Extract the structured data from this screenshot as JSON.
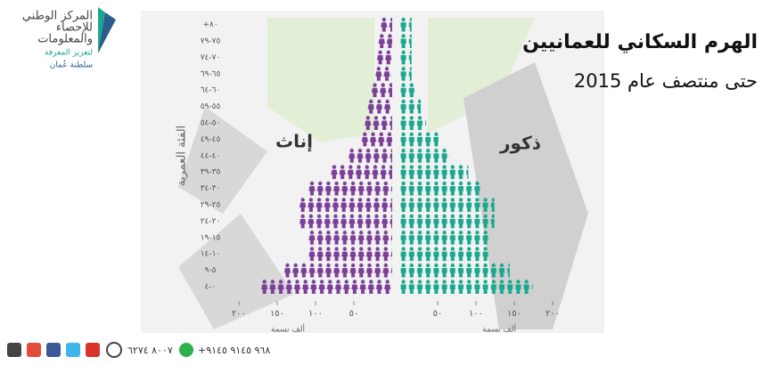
{
  "chart_data": {
    "type": "pyramid",
    "title": "الهرم السكاني للعمانيين",
    "subtitle": "حتى منتصف عام 2015",
    "y_axis_label": "الفئة العمرية",
    "x_axis_label": "ألف نسمة",
    "categories": [
      "٤-٠",
      "٩-٥",
      "١٤-١٠",
      "١٩-١٥",
      "٢٤-٢٠",
      "٢٩-٢٥",
      "٣٤-٣٠",
      "٣٩-٣٥",
      "٤٤-٤٠",
      "٤٩-٤٥",
      "٥٤-٥٠",
      "٥٩-٥٥",
      "٦٤-٦٠",
      "٦٩-٦٥",
      "٧٤-٧٠",
      "٧٩-٧٥",
      "+٨٠"
    ],
    "series": [
      {
        "name": "إناث",
        "color": "#7b3f98",
        "values": [
          172,
          142,
          110,
          110,
          122,
          122,
          110,
          81,
          58,
          41,
          37,
          33,
          28,
          23,
          21,
          19,
          16
        ]
      },
      {
        "name": "ذكور",
        "color": "#1aa88f",
        "values": [
          174,
          144,
          116,
          116,
          124,
          124,
          107,
          90,
          66,
          51,
          35,
          28,
          20,
          16,
          16,
          16,
          16
        ]
      }
    ],
    "xlim": [
      0,
      200
    ],
    "xticks": [
      {
        "value": 50,
        "label": "٥٠"
      },
      {
        "value": 100,
        "label": "١٠٠"
      },
      {
        "value": 150,
        "label": "١٥٠"
      },
      {
        "value": 200,
        "label": "٢٠٠"
      }
    ]
  },
  "header": {
    "org_name_1": "المركز الوطني",
    "org_name_2": "للإحصاء",
    "org_name_3": "والمعلومات",
    "slogan": "لتعزيز المعرفة",
    "country": "سلطنة عُمان"
  },
  "footer": {
    "phone_1": "٨٠٠٧ ٦٢٧٤",
    "phone_2": "+٩٦٨ ٩١٤٥ ٩١٤٥"
  }
}
